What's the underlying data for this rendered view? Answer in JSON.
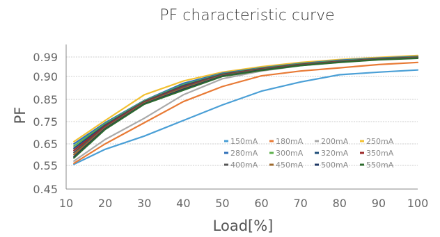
{
  "chart_data": {
    "type": "line",
    "title": "PF characteristic curve",
    "xlabel": "Load[%]",
    "ylabel": "PF",
    "x": [
      12,
      20,
      30,
      40,
      50,
      60,
      70,
      80,
      90,
      100
    ],
    "xticks": [
      10,
      20,
      30,
      40,
      50,
      60,
      70,
      80,
      90,
      100
    ],
    "xlim": [
      10,
      100
    ],
    "yticks": [
      {
        "value": 0.45,
        "label": "0.45"
      },
      {
        "value": 0.55,
        "label": "0.55"
      },
      {
        "value": 0.65,
        "label": "0.65"
      },
      {
        "value": 0.75,
        "label": "0.75"
      },
      {
        "value": 0.85,
        "label": "0.85"
      },
      {
        "value": 0.9,
        "label": "0.90"
      },
      {
        "value": 0.99,
        "label": "0.99"
      }
    ],
    "grid": true,
    "legend_position": "bottom-right",
    "series": [
      {
        "name": "150mA",
        "color": "#4a9fd6",
        "values": [
          0.555,
          0.625,
          0.685,
          0.755,
          0.825,
          0.868,
          0.888,
          0.908,
          0.92,
          0.93
        ]
      },
      {
        "name": "180mA",
        "color": "#e87a35",
        "values": [
          0.56,
          0.65,
          0.745,
          0.84,
          0.878,
          0.903,
          0.925,
          0.94,
          0.955,
          0.965
        ]
      },
      {
        "name": "200mA",
        "color": "#a9a9a9",
        "values": [
          0.57,
          0.67,
          0.765,
          0.86,
          0.895,
          0.925,
          0.95,
          0.968,
          0.98,
          0.988
        ]
      },
      {
        "name": "250mA",
        "color": "#f2c030",
        "values": [
          0.66,
          0.755,
          0.86,
          0.89,
          0.92,
          0.945,
          0.965,
          0.978,
          0.988,
          0.997
        ]
      },
      {
        "name": "280mA",
        "color": "#2f6fb7",
        "values": [
          0.65,
          0.745,
          0.845,
          0.885,
          0.915,
          0.94,
          0.96,
          0.975,
          0.985,
          0.992
        ]
      },
      {
        "name": "300mA",
        "color": "#5db04c",
        "values": [
          0.64,
          0.74,
          0.843,
          0.882,
          0.912,
          0.938,
          0.958,
          0.972,
          0.983,
          0.99
        ]
      },
      {
        "name": "320mA",
        "color": "#1f4e79",
        "values": [
          0.63,
          0.735,
          0.84,
          0.88,
          0.91,
          0.936,
          0.956,
          0.97,
          0.982,
          0.989
        ]
      },
      {
        "name": "350mA",
        "color": "#9c2a2a",
        "values": [
          0.62,
          0.73,
          0.838,
          0.878,
          0.908,
          0.935,
          0.955,
          0.969,
          0.981,
          0.988
        ]
      },
      {
        "name": "400mA",
        "color": "#555555",
        "values": [
          0.61,
          0.725,
          0.835,
          0.876,
          0.906,
          0.933,
          0.953,
          0.968,
          0.98,
          0.987
        ]
      },
      {
        "name": "450mA",
        "color": "#9e6a2d",
        "values": [
          0.6,
          0.722,
          0.833,
          0.874,
          0.904,
          0.931,
          0.952,
          0.967,
          0.979,
          0.986
        ]
      },
      {
        "name": "500mA",
        "color": "#1f3864",
        "values": [
          0.59,
          0.718,
          0.83,
          0.872,
          0.902,
          0.93,
          0.951,
          0.966,
          0.978,
          0.985
        ]
      },
      {
        "name": "550mA",
        "color": "#2e6b2e",
        "values": [
          0.585,
          0.715,
          0.828,
          0.87,
          0.9,
          0.928,
          0.95,
          0.965,
          0.977,
          0.984
        ]
      }
    ]
  }
}
